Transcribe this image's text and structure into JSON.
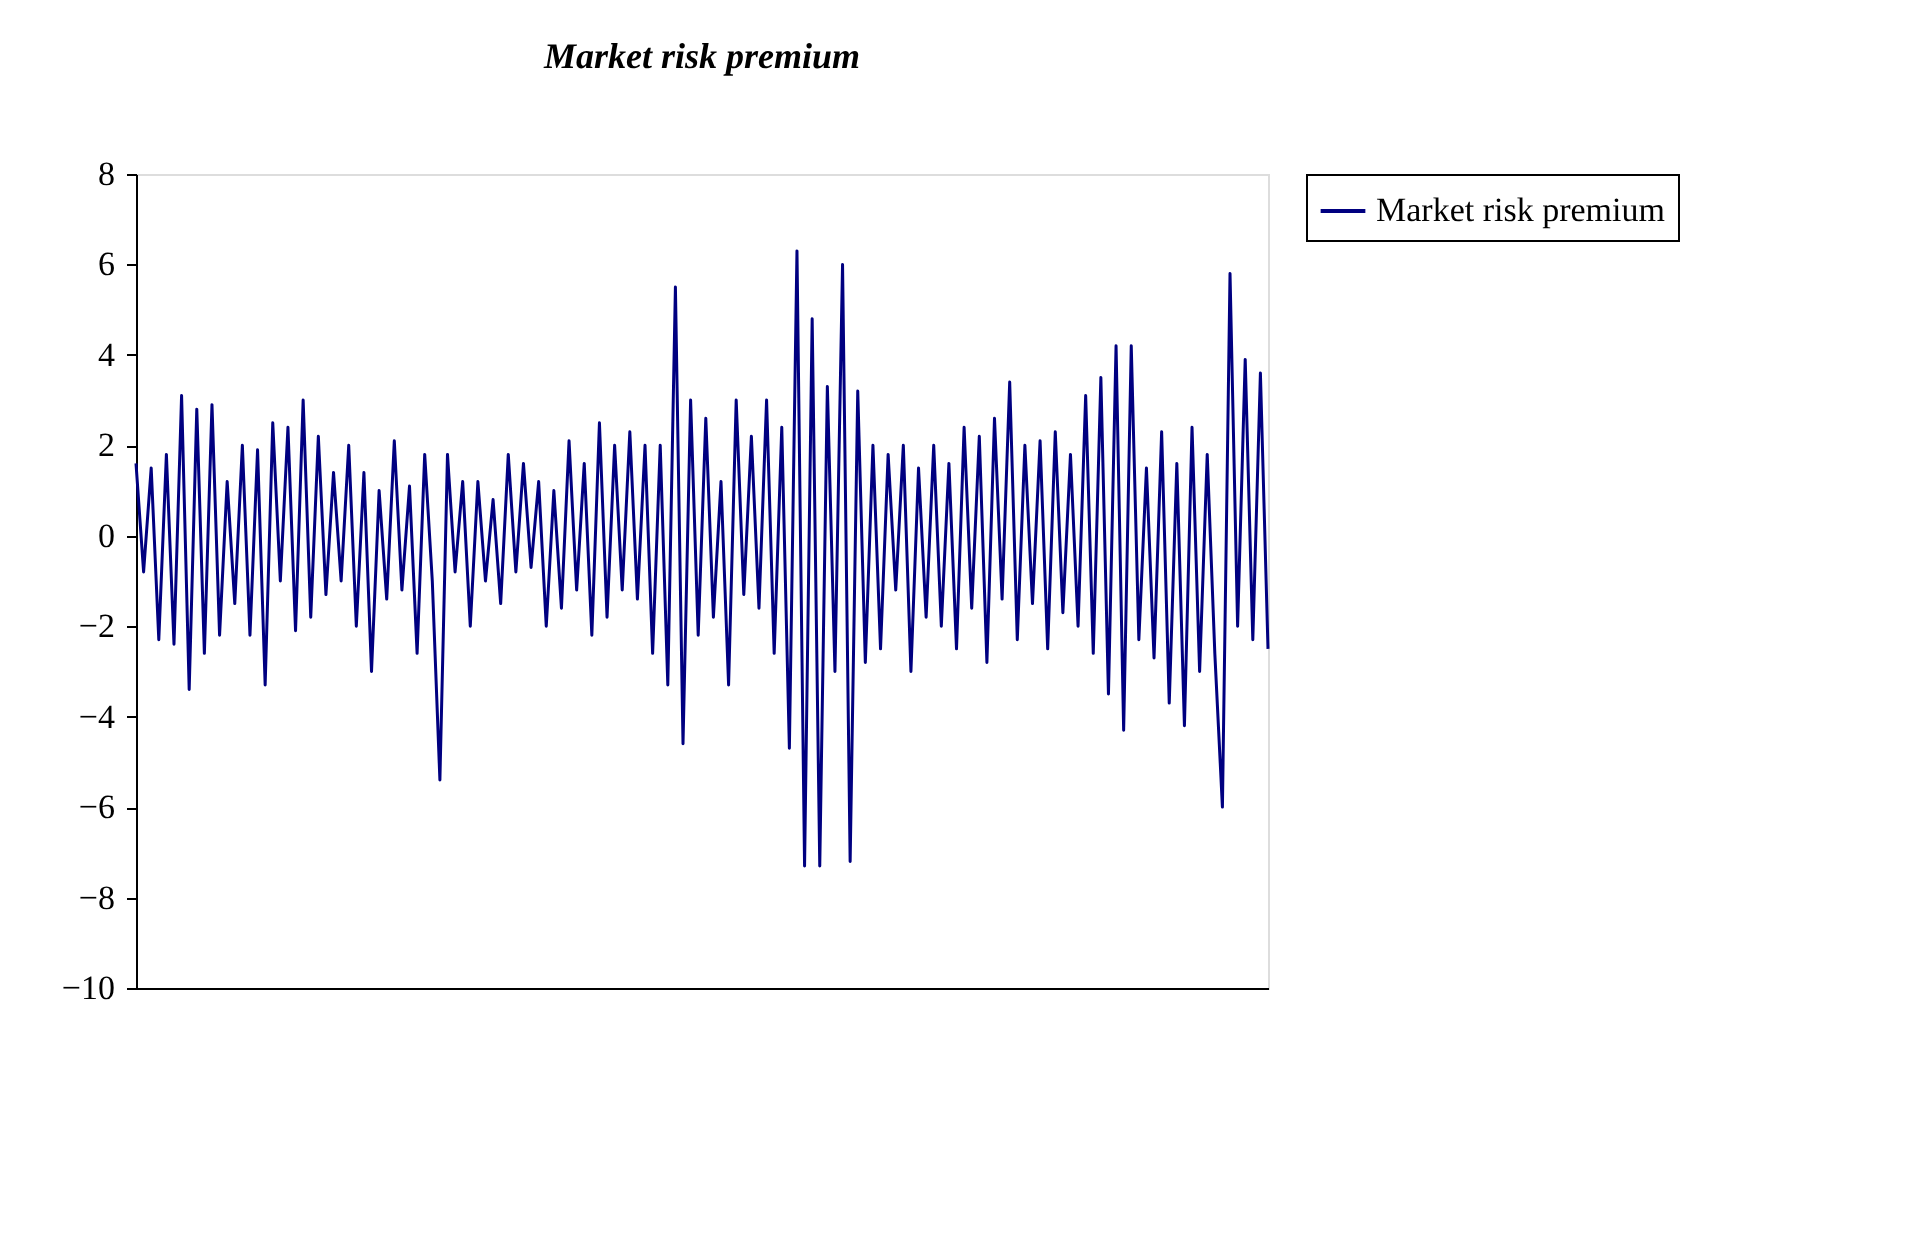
{
  "chart_data": {
    "type": "line",
    "title": "Market risk premium",
    "categories": [
      null,
      null,
      null,
      null,
      null,
      null,
      null,
      null,
      null,
      null,
      null,
      null,
      null,
      null,
      null,
      null,
      null,
      null,
      null,
      null,
      null,
      null,
      null,
      null,
      null,
      null,
      null,
      null,
      null,
      null,
      null,
      null,
      null,
      null,
      null,
      null,
      null,
      null,
      null,
      null,
      null,
      null,
      null,
      null,
      null,
      null,
      null,
      null,
      null,
      null,
      null,
      null,
      null,
      null,
      null,
      null,
      null,
      null,
      null,
      null,
      null,
      null,
      null,
      null,
      null,
      null,
      null,
      null,
      null,
      null,
      null,
      null,
      null,
      null,
      null,
      null,
      null,
      null,
      null,
      null,
      null,
      null,
      null,
      null,
      null,
      null,
      null,
      null,
      null,
      null,
      null,
      null,
      null,
      null,
      null,
      null,
      null,
      null,
      null,
      null,
      null,
      null,
      null,
      null,
      null,
      null,
      null,
      null,
      null,
      null,
      null,
      null,
      null,
      null,
      null,
      null,
      null,
      null,
      null,
      null,
      null,
      null,
      null,
      null,
      null,
      null,
      null,
      null,
      null,
      null,
      null,
      null,
      null,
      null,
      null,
      null,
      null,
      null,
      null,
      null,
      null,
      null,
      null,
      null,
      null,
      null,
      null,
      null,
      null,
      null
    ],
    "series": [
      {
        "name": "Market risk premium",
        "color": "#000080",
        "values": [
          1.6,
          -0.8,
          1.5,
          -2.3,
          1.8,
          -2.4,
          3.1,
          -3.4,
          2.8,
          -2.6,
          2.9,
          -2.2,
          1.2,
          -1.5,
          2.0,
          -2.2,
          1.9,
          -3.3,
          2.5,
          -1.0,
          2.4,
          -2.1,
          3.0,
          -1.8,
          2.2,
          -1.3,
          1.4,
          -1.0,
          2.0,
          -2.0,
          1.4,
          -3.0,
          1.0,
          -1.4,
          2.1,
          -1.2,
          1.1,
          -2.6,
          1.8,
          -1.0,
          -5.4,
          1.8,
          -0.8,
          1.2,
          -2.0,
          1.2,
          -1.0,
          0.8,
          -1.5,
          1.8,
          -0.8,
          1.6,
          -0.7,
          1.2,
          -2.0,
          1.0,
          -1.6,
          2.1,
          -1.2,
          1.6,
          -2.2,
          2.5,
          -1.8,
          2.0,
          -1.2,
          2.3,
          -1.4,
          2.0,
          -2.6,
          2.0,
          -3.3,
          5.5,
          -4.6,
          3.0,
          -2.2,
          2.6,
          -1.8,
          1.2,
          -3.3,
          3.0,
          -1.3,
          2.2,
          -1.6,
          3.0,
          -2.6,
          2.4,
          -4.7,
          6.3,
          -7.3,
          4.8,
          -7.3,
          3.3,
          -3.0,
          6.0,
          -7.2,
          3.2,
          -2.8,
          2.0,
          -2.5,
          1.8,
          -1.2,
          2.0,
          -3.0,
          1.5,
          -1.8,
          2.0,
          -2.0,
          1.6,
          -2.5,
          2.4,
          -1.6,
          2.2,
          -2.8,
          2.6,
          -1.4,
          3.4,
          -2.3,
          2.0,
          -1.5,
          2.1,
          -2.5,
          2.3,
          -1.7,
          1.8,
          -2.0,
          3.1,
          -2.6,
          3.5,
          -3.5,
          4.2,
          -4.3,
          4.2,
          -2.3,
          1.5,
          -2.7,
          2.3,
          -3.7,
          1.6,
          -4.2,
          2.4,
          -3.0,
          1.8,
          -2.6,
          -6.0,
          5.8,
          -2.0,
          3.9,
          -2.3,
          3.6,
          -2.5
        ]
      }
    ],
    "ylim": [
      -10,
      8
    ],
    "yticks": [
      -10,
      -8,
      -6,
      -4,
      -2,
      0,
      2,
      4,
      6,
      8
    ],
    "legend": "right",
    "tick_labels": "y"
  }
}
